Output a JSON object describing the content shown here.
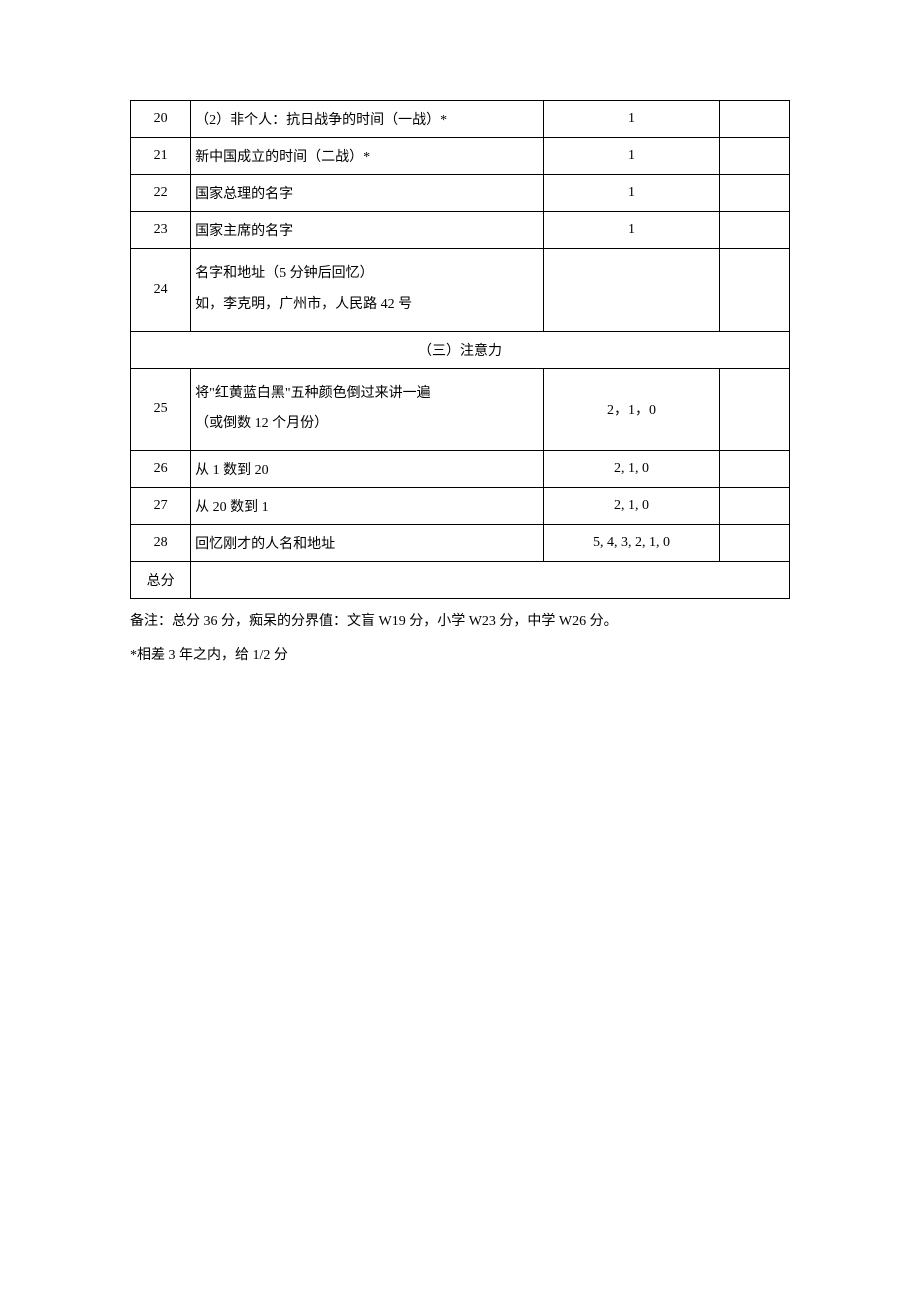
{
  "table": {
    "rows": [
      {
        "num": "20",
        "desc": "（2）非个人：抗日战争的时间（一战）*",
        "score": "1",
        "blank": ""
      },
      {
        "num": "21",
        "desc": "新中国成立的时间（二战）*",
        "score": "1",
        "blank": ""
      },
      {
        "num": "22",
        "desc": "国家总理的名字",
        "score": "1",
        "blank": ""
      },
      {
        "num": "23",
        "desc": "国家主席的名字",
        "score": "1",
        "blank": ""
      }
    ],
    "row24": {
      "num": "24",
      "desc_line1": "名字和地址（5 分钟后回忆）",
      "desc_line2": "如，李克明，广州市，人民路 42 号",
      "score": "",
      "blank": ""
    },
    "section_header": "（三）注意力",
    "row25": {
      "num": "25",
      "desc_line1": "将\"红黄蓝白黑\"五种颜色倒过来讲一遍",
      "desc_line2": "（或倒数 12 个月份）",
      "score": "2，1，0",
      "blank": ""
    },
    "rows2": [
      {
        "num": "26",
        "desc": "从 1 数到 20",
        "score": "2, 1, 0",
        "blank": ""
      },
      {
        "num": "27",
        "desc": "从 20 数到 1",
        "score": "2, 1, 0",
        "blank": ""
      },
      {
        "num": "28",
        "desc": "回忆刚才的人名和地址",
        "score": "5, 4, 3, 2, 1, 0",
        "blank": ""
      }
    ],
    "total_label": "总分",
    "total_value": ""
  },
  "notes": {
    "line1": "备注：总分 36 分，痴呆的分界值：文盲 W19 分，小学 W23 分，中学 W26 分。",
    "line2": "*相差 3 年之内，给 1/2 分"
  },
  "colors": {
    "border": "#000000",
    "text": "#000000",
    "background": "#ffffff"
  },
  "typography": {
    "font_family": "SimSun",
    "cell_fontsize": 14,
    "notes_fontsize": 14
  }
}
